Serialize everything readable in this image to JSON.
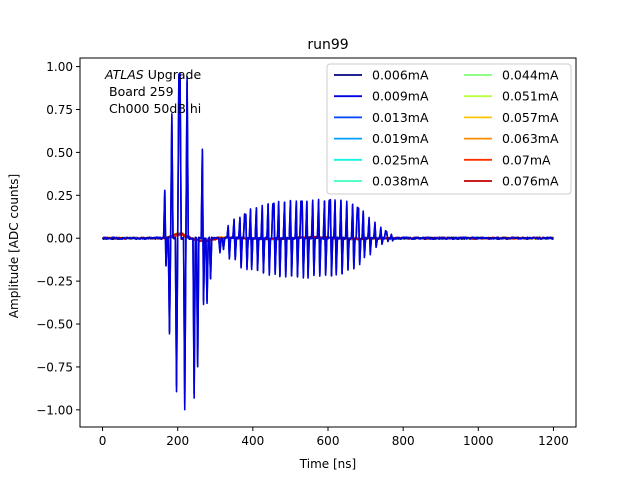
{
  "chart_data": {
    "type": "line",
    "title": "run99",
    "xlabel": "Time [ns]",
    "ylabel": "Amplitude [ADC counts]",
    "xlim": [
      -60,
      1260
    ],
    "ylim": [
      -1.1,
      1.05
    ],
    "xticks": [
      0,
      200,
      400,
      600,
      800,
      1000,
      1200
    ],
    "xtick_labels": [
      "0",
      "200",
      "400",
      "600",
      "800",
      "1000",
      "1200"
    ],
    "yticks": [
      -1.0,
      -0.75,
      -0.5,
      -0.25,
      0.0,
      0.25,
      0.5,
      0.75,
      1.0
    ],
    "ytick_labels": [
      "−1.00",
      "−0.75",
      "−0.50",
      "−0.25",
      "0.00",
      "0.25",
      "0.50",
      "0.75",
      "1.00"
    ],
    "grid": false,
    "legend_position": "top-right",
    "legend_columns": 2,
    "annotation": {
      "italic_part": "ATLAS",
      "rest_line1": " Upgrade",
      "line2": "Board 259",
      "line3": "Ch000 50dB hi"
    },
    "x_range": [
      0,
      1200
    ],
    "time_step": 3.125,
    "series": [
      {
        "name": "0.006mA",
        "color": "#00007f",
        "shape": "ringing"
      },
      {
        "name": "0.009mA",
        "color": "#0000e0",
        "shape": "ringing"
      },
      {
        "name": "0.013mA",
        "color": "#0044ff",
        "shape": "pulse"
      },
      {
        "name": "0.019mA",
        "color": "#00a0ff",
        "shape": "pulse"
      },
      {
        "name": "0.025mA",
        "color": "#14f4e2",
        "shape": "pulse"
      },
      {
        "name": "0.038mA",
        "color": "#3cffba",
        "shape": "pulse"
      },
      {
        "name": "0.044mA",
        "color": "#7dff7a",
        "shape": "pulse"
      },
      {
        "name": "0.051mA",
        "color": "#baff3c",
        "shape": "pulse"
      },
      {
        "name": "0.057mA",
        "color": "#ffc400",
        "shape": "pulse"
      },
      {
        "name": "0.063mA",
        "color": "#ff8c00",
        "shape": "pulse"
      },
      {
        "name": "0.07mA",
        "color": "#ff3000",
        "shape": "pulse"
      },
      {
        "name": "0.076mA",
        "color": "#c00000",
        "shape": "pulse"
      }
    ],
    "spikes": [
      {
        "x": 165,
        "pos": 0.28,
        "neg": -0.16
      },
      {
        "x": 175,
        "pos": 0.0,
        "neg": -0.56
      },
      {
        "x": 185,
        "pos": 0.73,
        "neg": 0.0
      },
      {
        "x": 195,
        "pos": 0.0,
        "neg": -0.89
      },
      {
        "x": 205,
        "pos": 0.96,
        "neg": 0.0
      },
      {
        "x": 215,
        "pos": 0.0,
        "neg": -1.0
      },
      {
        "x": 225,
        "pos": 0.94,
        "neg": 0.0
      },
      {
        "x": 240,
        "pos": 0.0,
        "neg": -0.93
      },
      {
        "x": 250,
        "pos": 0.0,
        "neg": -0.75
      },
      {
        "x": 265,
        "pos": 0.52,
        "neg": -0.38
      },
      {
        "x": 275,
        "pos": 0.0,
        "neg": -0.38
      },
      {
        "x": 285,
        "pos": 0.0,
        "neg": -0.24
      },
      {
        "x": 310,
        "pos": 0.0,
        "neg": -0.08
      },
      {
        "x": 320,
        "pos": 0.0,
        "neg": -0.07
      },
      {
        "x": 335,
        "pos": 0.07,
        "neg": -0.12
      },
      {
        "x": 350,
        "pos": 0.11,
        "neg": -0.13
      },
      {
        "x": 365,
        "pos": 0.12,
        "neg": -0.17
      },
      {
        "x": 380,
        "pos": 0.14,
        "neg": -0.18
      },
      {
        "x": 395,
        "pos": 0.17,
        "neg": -0.18
      },
      {
        "x": 410,
        "pos": 0.18,
        "neg": -0.19
      },
      {
        "x": 425,
        "pos": 0.19,
        "neg": -0.2
      },
      {
        "x": 440,
        "pos": 0.2,
        "neg": -0.21
      },
      {
        "x": 455,
        "pos": 0.2,
        "neg": -0.21
      },
      {
        "x": 470,
        "pos": 0.21,
        "neg": -0.22
      },
      {
        "x": 485,
        "pos": 0.21,
        "neg": -0.22
      },
      {
        "x": 500,
        "pos": 0.22,
        "neg": -0.22
      },
      {
        "x": 515,
        "pos": 0.22,
        "neg": -0.22
      },
      {
        "x": 530,
        "pos": 0.22,
        "neg": -0.23
      },
      {
        "x": 545,
        "pos": 0.22,
        "neg": -0.23
      },
      {
        "x": 560,
        "pos": 0.22,
        "neg": -0.22
      },
      {
        "x": 575,
        "pos": 0.22,
        "neg": -0.22
      },
      {
        "x": 590,
        "pos": 0.22,
        "neg": -0.22
      },
      {
        "x": 605,
        "pos": 0.22,
        "neg": -0.22
      },
      {
        "x": 620,
        "pos": 0.22,
        "neg": -0.21
      },
      {
        "x": 635,
        "pos": 0.22,
        "neg": -0.21
      },
      {
        "x": 650,
        "pos": 0.21,
        "neg": -0.19
      },
      {
        "x": 665,
        "pos": 0.2,
        "neg": -0.18
      },
      {
        "x": 680,
        "pos": 0.18,
        "neg": -0.15
      },
      {
        "x": 695,
        "pos": 0.16,
        "neg": -0.11
      },
      {
        "x": 710,
        "pos": 0.12,
        "neg": -0.09
      },
      {
        "x": 725,
        "pos": 0.09,
        "neg": -0.05
      },
      {
        "x": 740,
        "pos": 0.06,
        "neg": -0.03
      },
      {
        "x": 755,
        "pos": 0.04,
        "neg": -0.02
      },
      {
        "x": 770,
        "pos": 0.02,
        "neg": -0.01
      }
    ]
  }
}
